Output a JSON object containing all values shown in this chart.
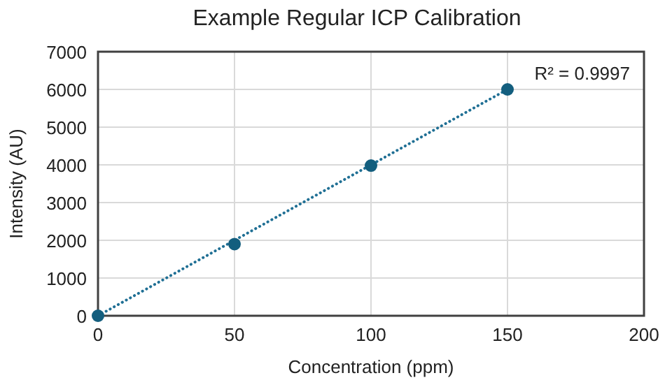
{
  "chart_data": {
    "type": "scatter",
    "title": "Example Regular ICP Calibration",
    "xlabel": "Concentration (ppm)",
    "ylabel": "Intensity (AU)",
    "series": [
      {
        "type": "line",
        "color": "#1f6f94",
        "x": [
          0,
          150
        ],
        "values": [
          0,
          6000
        ],
        "marker": "none",
        "line_style": "dotted"
      },
      {
        "color": "#135e7e",
        "x": [
          0,
          50,
          100,
          150
        ],
        "values": [
          0,
          1900,
          3980,
          6000
        ],
        "marker": "circle"
      }
    ],
    "annotations": [
      "R² = 0.9997"
    ],
    "xlim": [
      0,
      200
    ],
    "xticks": [
      0,
      50,
      100,
      150,
      200
    ],
    "ylim": [
      0,
      7000
    ],
    "yticks": [
      0,
      1000,
      2000,
      3000,
      4000,
      5000,
      6000,
      7000
    ],
    "grid": true
  }
}
